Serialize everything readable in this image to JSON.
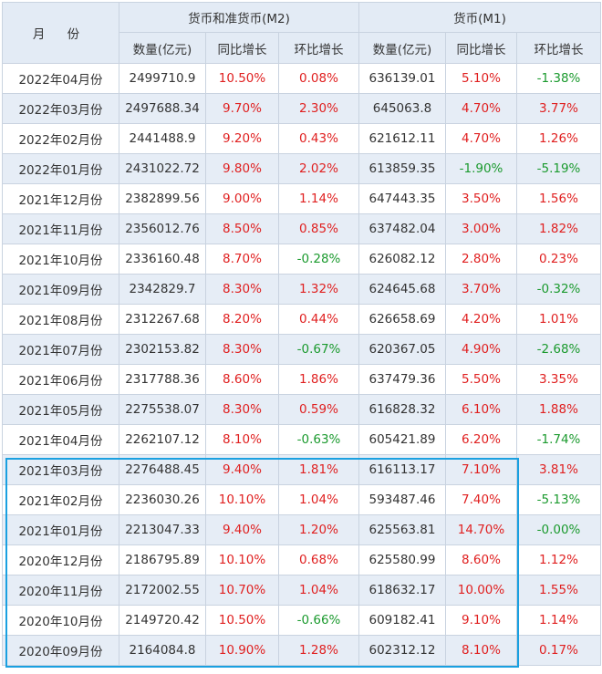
{
  "header": {
    "month_label": "月 份",
    "m2_group": "货币和准货币(M2)",
    "m1_group": "货币(M1)",
    "sub_labels": [
      "数量(亿元)",
      "同比增长",
      "环比增长",
      "数量(亿元)",
      "同比增长",
      "环比增长"
    ]
  },
  "rows": [
    {
      "month": "2022年04月份",
      "m2_amount": "2499710.9",
      "m2_yoy": "10.50%",
      "m2_mom": "0.08%",
      "m1_amount": "636139.01",
      "m1_yoy": "5.10%",
      "m1_mom": "-1.38%"
    },
    {
      "month": "2022年03月份",
      "m2_amount": "2497688.34",
      "m2_yoy": "9.70%",
      "m2_mom": "2.30%",
      "m1_amount": "645063.8",
      "m1_yoy": "4.70%",
      "m1_mom": "3.77%"
    },
    {
      "month": "2022年02月份",
      "m2_amount": "2441488.9",
      "m2_yoy": "9.20%",
      "m2_mom": "0.43%",
      "m1_amount": "621612.11",
      "m1_yoy": "4.70%",
      "m1_mom": "1.26%"
    },
    {
      "month": "2022年01月份",
      "m2_amount": "2431022.72",
      "m2_yoy": "9.80%",
      "m2_mom": "2.02%",
      "m1_amount": "613859.35",
      "m1_yoy": "-1.90%",
      "m1_mom": "-5.19%"
    },
    {
      "month": "2021年12月份",
      "m2_amount": "2382899.56",
      "m2_yoy": "9.00%",
      "m2_mom": "1.14%",
      "m1_amount": "647443.35",
      "m1_yoy": "3.50%",
      "m1_mom": "1.56%"
    },
    {
      "month": "2021年11月份",
      "m2_amount": "2356012.76",
      "m2_yoy": "8.50%",
      "m2_mom": "0.85%",
      "m1_amount": "637482.04",
      "m1_yoy": "3.00%",
      "m1_mom": "1.82%"
    },
    {
      "month": "2021年10月份",
      "m2_amount": "2336160.48",
      "m2_yoy": "8.70%",
      "m2_mom": "-0.28%",
      "m1_amount": "626082.12",
      "m1_yoy": "2.80%",
      "m1_mom": "0.23%"
    },
    {
      "month": "2021年09月份",
      "m2_amount": "2342829.7",
      "m2_yoy": "8.30%",
      "m2_mom": "1.32%",
      "m1_amount": "624645.68",
      "m1_yoy": "3.70%",
      "m1_mom": "-0.32%"
    },
    {
      "month": "2021年08月份",
      "m2_amount": "2312267.68",
      "m2_yoy": "8.20%",
      "m2_mom": "0.44%",
      "m1_amount": "626658.69",
      "m1_yoy": "4.20%",
      "m1_mom": "1.01%"
    },
    {
      "month": "2021年07月份",
      "m2_amount": "2302153.82",
      "m2_yoy": "8.30%",
      "m2_mom": "-0.67%",
      "m1_amount": "620367.05",
      "m1_yoy": "4.90%",
      "m1_mom": "-2.68%"
    },
    {
      "month": "2021年06月份",
      "m2_amount": "2317788.36",
      "m2_yoy": "8.60%",
      "m2_mom": "1.86%",
      "m1_amount": "637479.36",
      "m1_yoy": "5.50%",
      "m1_mom": "3.35%"
    },
    {
      "month": "2021年05月份",
      "m2_amount": "2275538.07",
      "m2_yoy": "8.30%",
      "m2_mom": "0.59%",
      "m1_amount": "616828.32",
      "m1_yoy": "6.10%",
      "m1_mom": "1.88%"
    },
    {
      "month": "2021年04月份",
      "m2_amount": "2262107.12",
      "m2_yoy": "8.10%",
      "m2_mom": "-0.63%",
      "m1_amount": "605421.89",
      "m1_yoy": "6.20%",
      "m1_mom": "-1.74%"
    },
    {
      "month": "2021年03月份",
      "m2_amount": "2276488.45",
      "m2_yoy": "9.40%",
      "m2_mom": "1.81%",
      "m1_amount": "616113.17",
      "m1_yoy": "7.10%",
      "m1_mom": "3.81%"
    },
    {
      "month": "2021年02月份",
      "m2_amount": "2236030.26",
      "m2_yoy": "10.10%",
      "m2_mom": "1.04%",
      "m1_amount": "593487.46",
      "m1_yoy": "7.40%",
      "m1_mom": "-5.13%"
    },
    {
      "month": "2021年01月份",
      "m2_amount": "2213047.33",
      "m2_yoy": "9.40%",
      "m2_mom": "1.20%",
      "m1_amount": "625563.81",
      "m1_yoy": "14.70%",
      "m1_mom": "-0.00%"
    },
    {
      "month": "2020年12月份",
      "m2_amount": "2186795.89",
      "m2_yoy": "10.10%",
      "m2_mom": "0.68%",
      "m1_amount": "625580.99",
      "m1_yoy": "8.60%",
      "m1_mom": "1.12%"
    },
    {
      "month": "2020年11月份",
      "m2_amount": "2172002.55",
      "m2_yoy": "10.70%",
      "m2_mom": "1.04%",
      "m1_amount": "618632.17",
      "m1_yoy": "10.00%",
      "m1_mom": "1.55%"
    },
    {
      "month": "2020年10月份",
      "m2_amount": "2149720.42",
      "m2_yoy": "10.50%",
      "m2_mom": "-0.66%",
      "m1_amount": "609182.41",
      "m1_yoy": "9.10%",
      "m1_mom": "1.14%"
    },
    {
      "month": "2020年09月份",
      "m2_amount": "2164084.8",
      "m2_yoy": "10.90%",
      "m2_mom": "1.28%",
      "m1_amount": "602312.12",
      "m1_yoy": "8.10%",
      "m1_mom": "0.17%"
    }
  ],
  "colors": {
    "header_bg": "#e3ebf5",
    "row_alt_bg": "#e6edf6",
    "positive_text": "#e02020",
    "negative_text": "#1b9a2e",
    "highlight_border": "#1aa0e0"
  }
}
